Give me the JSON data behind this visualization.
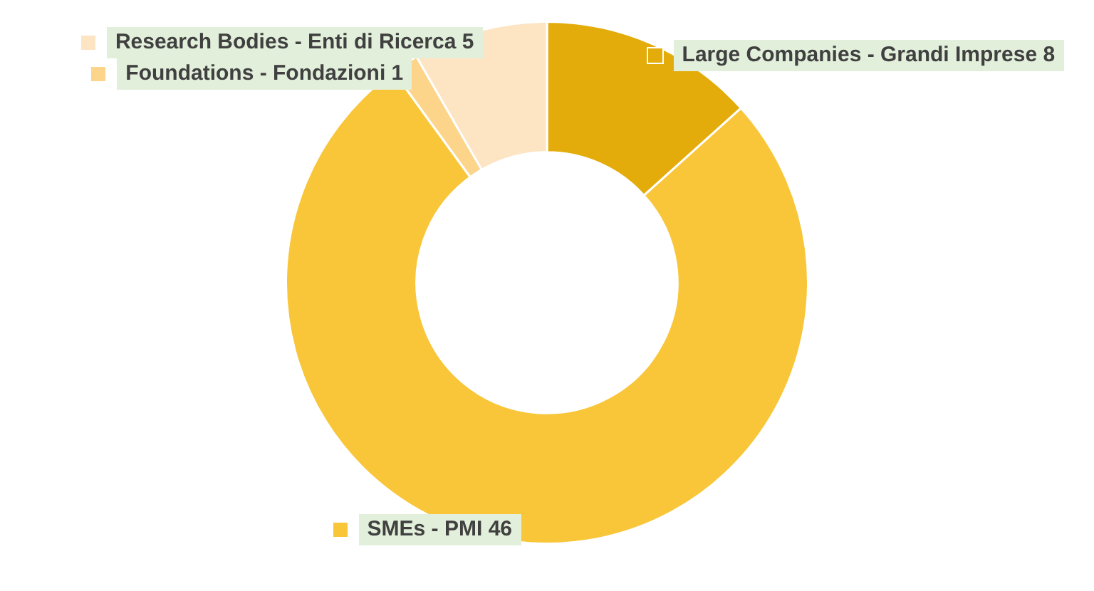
{
  "chart_data": {
    "type": "donut",
    "categories": [
      "Large Companies - Grandi Imprese",
      "SMEs - PMI",
      "Foundations - Fondazioni",
      "Research Bodies - Enti di Ricerca"
    ],
    "values": [
      8,
      46,
      1,
      5
    ],
    "colors": [
      "#e3ac0a",
      "#f8c638",
      "#fcd48a",
      "#fde4c2"
    ],
    "data_labels": true,
    "legend": "bottom right"
  }
}
